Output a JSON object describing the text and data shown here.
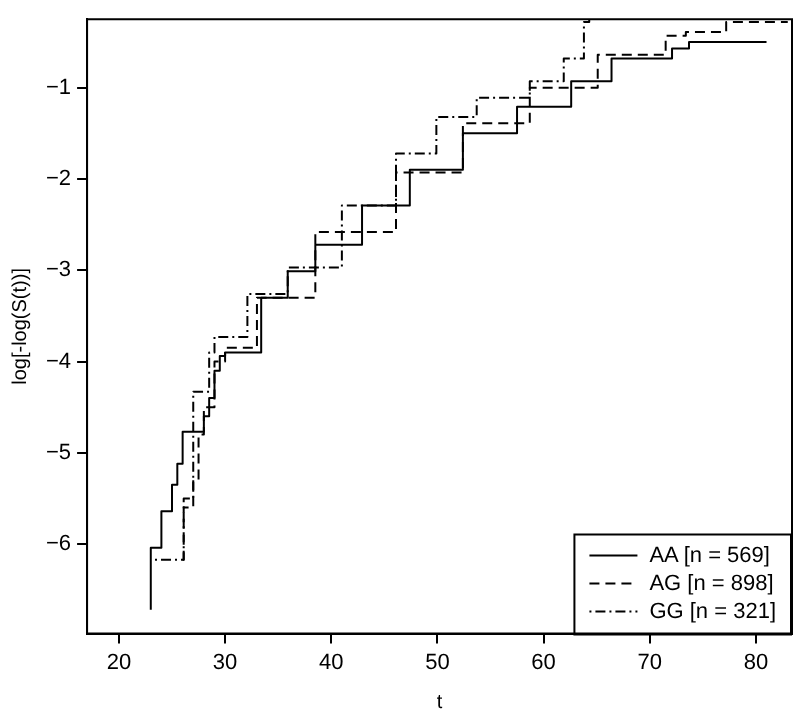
{
  "chart_data": {
    "type": "step",
    "xlabel": "t",
    "ylabel": "log[-log(S(t))]",
    "xlim": [
      17,
      83.4
    ],
    "xticks": [
      20,
      30,
      40,
      50,
      60,
      70,
      80
    ],
    "ylim": [
      -6.98,
      -0.25
    ],
    "yticks": [
      -6,
      -5,
      -4,
      -3,
      -2,
      -1
    ],
    "grid": false,
    "legend": "bottom right",
    "marker": "none",
    "series": [
      {
        "name": "AA [n = 569]",
        "color": "#000000",
        "line_style": "solid",
        "x": [
          23,
          23,
          24,
          25,
          25.5,
          26,
          28,
          28.5,
          29,
          29.5,
          30,
          33.4,
          35.9,
          38.5,
          42.9,
          47.4,
          52.4,
          57.5,
          62.6,
          66.4,
          72.1,
          73.7,
          81
        ],
        "values": [
          -6.72,
          -6.04,
          -5.64,
          -5.35,
          -5.12,
          -4.77,
          -4.6,
          -4.4,
          -4.1,
          -3.94,
          -3.9,
          -3.3,
          -3.01,
          -2.72,
          -2.29,
          -1.9,
          -1.5,
          -1.21,
          -0.93,
          -0.68,
          -0.57,
          -0.5,
          -0.5
        ]
      },
      {
        "name": "AG [n = 898]",
        "color": "#000000",
        "line_style": "dashed",
        "x": [
          26,
          26.1,
          27,
          27.5,
          28,
          29,
          30,
          33,
          38.5,
          46.1,
          52.4,
          58.7,
          65.1,
          71.5,
          73.4,
          77.2,
          83
        ],
        "values": [
          -6.17,
          -5.6,
          -5.3,
          -4.8,
          -4.5,
          -4,
          -3.85,
          -3.3,
          -2.58,
          -1.93,
          -1.39,
          -1,
          -0.64,
          -0.43,
          -0.39,
          -0.28,
          -0.28
        ]
      },
      {
        "name": "GG [n = 321]",
        "color": "#000000",
        "line_style": "dotted",
        "x": [
          23.4,
          26,
          26.1,
          27,
          28.5,
          29,
          32.1,
          35.9,
          41,
          46.1,
          49.9,
          53.7,
          58.7,
          61.9,
          63.8,
          64.3
        ],
        "values": [
          -6.17,
          -6.17,
          -5.5,
          -4.33,
          -3.9,
          -3.73,
          -3.26,
          -2.97,
          -2.29,
          -1.72,
          -1.32,
          -1.11,
          -0.93,
          -0.68,
          -0.28,
          -0.26
        ]
      }
    ]
  }
}
